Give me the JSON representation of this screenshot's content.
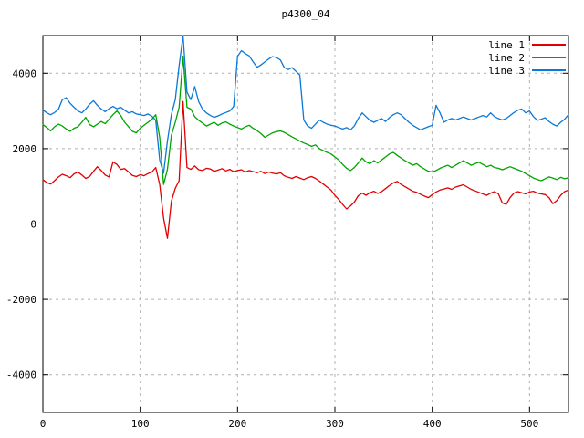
{
  "title": "p4300_04",
  "colors": {
    "background": "#ffffff",
    "plot_border": "#000000",
    "grid": "#b0b0b0",
    "text": "#000000"
  },
  "chart_data": {
    "type": "line",
    "title": "p4300_04",
    "xlabel": "",
    "ylabel": "",
    "xlim": [
      0,
      540
    ],
    "ylim": [
      -5000,
      5000
    ],
    "xticks": [
      0,
      100,
      200,
      300,
      400,
      500
    ],
    "yticks": [
      -4000,
      -2000,
      0,
      2000,
      4000
    ],
    "grid": true,
    "legend_position": "top-right-inside",
    "x_start": 0,
    "x_step": 4,
    "series": [
      {
        "name": "line 1",
        "color": "#e00000",
        "values": [
          1180,
          1100,
          1060,
          1150,
          1250,
          1320,
          1280,
          1230,
          1330,
          1380,
          1300,
          1210,
          1260,
          1400,
          1520,
          1420,
          1300,
          1250,
          1650,
          1580,
          1450,
          1470,
          1380,
          1290,
          1260,
          1310,
          1280,
          1340,
          1380,
          1500,
          1050,
          150,
          -380,
          600,
          950,
          1150,
          3250,
          1500,
          1450,
          1540,
          1440,
          1420,
          1480,
          1460,
          1400,
          1430,
          1470,
          1410,
          1450,
          1390,
          1420,
          1440,
          1380,
          1420,
          1390,
          1360,
          1400,
          1340,
          1380,
          1350,
          1330,
          1360,
          1280,
          1240,
          1210,
          1260,
          1220,
          1180,
          1230,
          1260,
          1210,
          1140,
          1060,
          980,
          900,
          760,
          650,
          520,
          400,
          480,
          580,
          750,
          820,
          760,
          830,
          870,
          810,
          860,
          940,
          1020,
          1090,
          1130,
          1050,
          990,
          930,
          870,
          840,
          790,
          740,
          700,
          780,
          850,
          900,
          930,
          960,
          920,
          980,
          1010,
          1040,
          980,
          920,
          880,
          840,
          800,
          760,
          820,
          860,
          800,
          560,
          520,
          700,
          820,
          860,
          830,
          800,
          850,
          870,
          820,
          800,
          780,
          700,
          540,
          620,
          760,
          860,
          900
        ]
      },
      {
        "name": "line 2",
        "color": "#00a400",
        "values": [
          2640,
          2560,
          2470,
          2580,
          2650,
          2600,
          2520,
          2460,
          2540,
          2580,
          2700,
          2830,
          2640,
          2580,
          2650,
          2720,
          2660,
          2780,
          2900,
          3000,
          2880,
          2700,
          2580,
          2460,
          2420,
          2540,
          2620,
          2700,
          2780,
          2900,
          2300,
          1050,
          1450,
          2350,
          2700,
          3100,
          4450,
          3100,
          3050,
          2850,
          2750,
          2680,
          2600,
          2650,
          2700,
          2620,
          2680,
          2710,
          2650,
          2600,
          2560,
          2520,
          2580,
          2620,
          2540,
          2480,
          2400,
          2300,
          2360,
          2420,
          2450,
          2470,
          2430,
          2370,
          2310,
          2260,
          2200,
          2150,
          2110,
          2060,
          2100,
          2000,
          1950,
          1900,
          1860,
          1780,
          1700,
          1580,
          1480,
          1420,
          1500,
          1620,
          1750,
          1650,
          1600,
          1680,
          1620,
          1700,
          1780,
          1860,
          1900,
          1820,
          1750,
          1680,
          1620,
          1560,
          1600,
          1520,
          1460,
          1400,
          1380,
          1420,
          1480,
          1520,
          1560,
          1500,
          1560,
          1620,
          1680,
          1620,
          1560,
          1600,
          1640,
          1580,
          1520,
          1560,
          1500,
          1480,
          1440,
          1480,
          1520,
          1480,
          1440,
          1400,
          1340,
          1280,
          1220,
          1180,
          1150,
          1200,
          1250,
          1220,
          1180,
          1240,
          1200,
          1230
        ]
      },
      {
        "name": "line 3",
        "color": "#0c78d8",
        "values": [
          3030,
          2950,
          2900,
          2960,
          3050,
          3300,
          3350,
          3200,
          3100,
          3000,
          2950,
          3050,
          3180,
          3270,
          3150,
          3050,
          2980,
          3060,
          3120,
          3060,
          3100,
          3020,
          2950,
          2980,
          2920,
          2900,
          2880,
          2920,
          2860,
          2750,
          1700,
          1350,
          2200,
          2900,
          3300,
          4200,
          5000,
          3500,
          3300,
          3650,
          3250,
          3050,
          2950,
          2880,
          2830,
          2870,
          2920,
          2960,
          3000,
          3120,
          4450,
          4600,
          4520,
          4460,
          4300,
          4160,
          4220,
          4300,
          4380,
          4440,
          4420,
          4350,
          4150,
          4100,
          4150,
          4050,
          3950,
          2760,
          2600,
          2540,
          2650,
          2760,
          2700,
          2650,
          2620,
          2600,
          2560,
          2520,
          2560,
          2500,
          2600,
          2800,
          2950,
          2850,
          2750,
          2700,
          2750,
          2800,
          2720,
          2820,
          2900,
          2950,
          2900,
          2800,
          2700,
          2620,
          2560,
          2500,
          2540,
          2580,
          2620,
          3150,
          2950,
          2700,
          2760,
          2800,
          2760,
          2800,
          2840,
          2800,
          2760,
          2800,
          2840,
          2880,
          2840,
          2950,
          2850,
          2800,
          2760,
          2800,
          2880,
          2960,
          3020,
          3050,
          2950,
          3000,
          2850,
          2750,
          2780,
          2820,
          2720,
          2650,
          2600,
          2700,
          2780,
          2900
        ]
      }
    ]
  }
}
